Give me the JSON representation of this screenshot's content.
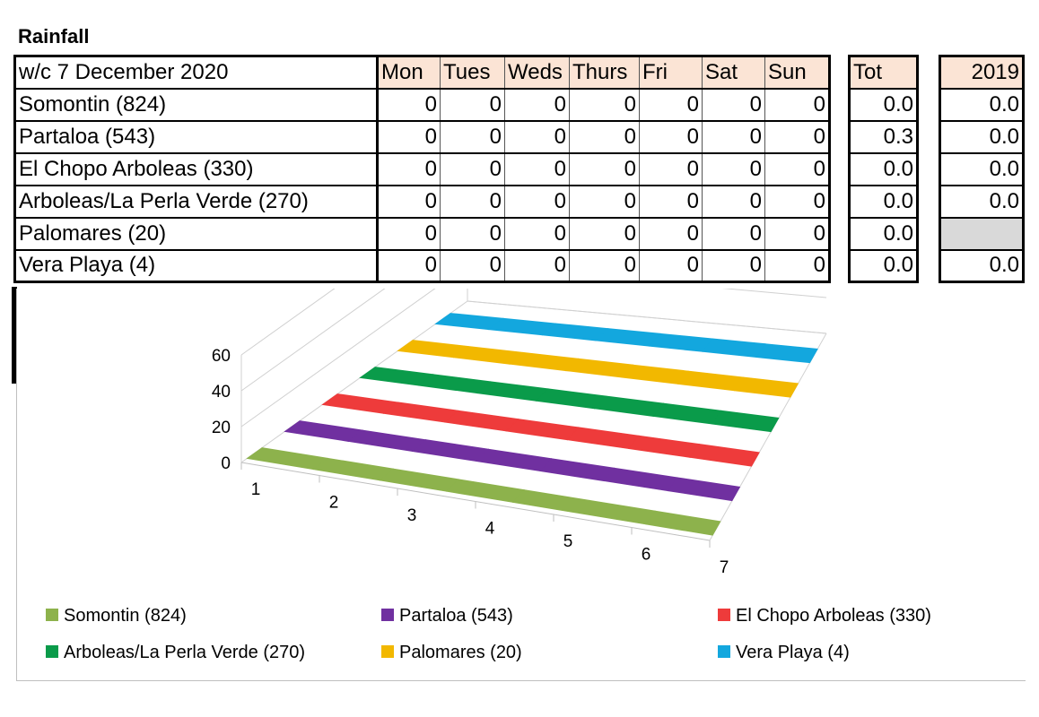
{
  "title": "Rainfall",
  "table": {
    "week_label": "w/c 7 December 2020",
    "days": [
      "Mon",
      "Tues",
      "Weds",
      "Thurs",
      "Fri",
      "Sat",
      "Sun"
    ],
    "tot_header": "Tot",
    "year_header": "2019",
    "rows": [
      {
        "station": "Somontin (824)",
        "values": [
          "0",
          "0",
          "0",
          "0",
          "0",
          "0",
          "0"
        ],
        "tot": "0.0",
        "y2019": "0.0"
      },
      {
        "station": "Partaloa (543)",
        "values": [
          "0",
          "0",
          "0",
          "0",
          "0",
          "0",
          "0"
        ],
        "tot": "0.3",
        "y2019": "0.0"
      },
      {
        "station": "El Chopo Arboleas (330)",
        "values": [
          "0",
          "0",
          "0",
          "0",
          "0",
          "0",
          "0"
        ],
        "tot": "0.0",
        "y2019": "0.0"
      },
      {
        "station": "Arboleas/La Perla Verde (270)",
        "values": [
          "0",
          "0",
          "0",
          "0",
          "0",
          "0",
          "0"
        ],
        "tot": "0.0",
        "y2019": "0.0"
      },
      {
        "station": "Palomares (20)",
        "values": [
          "0",
          "0",
          "0",
          "0",
          "0",
          "0",
          "0"
        ],
        "tot": "0.0",
        "y2019": ""
      },
      {
        "station": "Vera Playa (4)",
        "values": [
          "0",
          "0",
          "0",
          "0",
          "0",
          "0",
          "0"
        ],
        "tot": "0.0",
        "y2019": "0.0"
      }
    ]
  },
  "chart_data": {
    "type": "bar",
    "subtype": "3d-ribbon",
    "title": "",
    "xlabel": "",
    "ylabel": "",
    "categories": [
      "1",
      "2",
      "3",
      "4",
      "5",
      "6",
      "7"
    ],
    "y_ticks": [
      "0",
      "20",
      "40",
      "60"
    ],
    "ylim": [
      0,
      60
    ],
    "grid": true,
    "legend_position": "bottom",
    "series": [
      {
        "name": "Somontin (824)",
        "color": "#8db24c",
        "values": [
          0,
          0,
          0,
          0,
          0,
          0,
          0
        ]
      },
      {
        "name": "Partaloa (543)",
        "color": "#7030a0",
        "values": [
          0,
          0,
          0,
          0,
          0,
          0,
          0
        ]
      },
      {
        "name": "El Chopo Arboleas (330)",
        "color": "#ee3b3b",
        "values": [
          0,
          0,
          0,
          0,
          0,
          0,
          0
        ]
      },
      {
        "name": "Arboleas/La Perla Verde (270)",
        "color": "#0a9b4a",
        "values": [
          0,
          0,
          0,
          0,
          0,
          0,
          0
        ]
      },
      {
        "name": "Palomares (20)",
        "color": "#f2b800",
        "values": [
          0,
          0,
          0,
          0,
          0,
          0,
          0
        ]
      },
      {
        "name": "Vera Playa (4)",
        "color": "#13a7de",
        "values": [
          0,
          0,
          0,
          0,
          0,
          0,
          0
        ]
      }
    ]
  }
}
